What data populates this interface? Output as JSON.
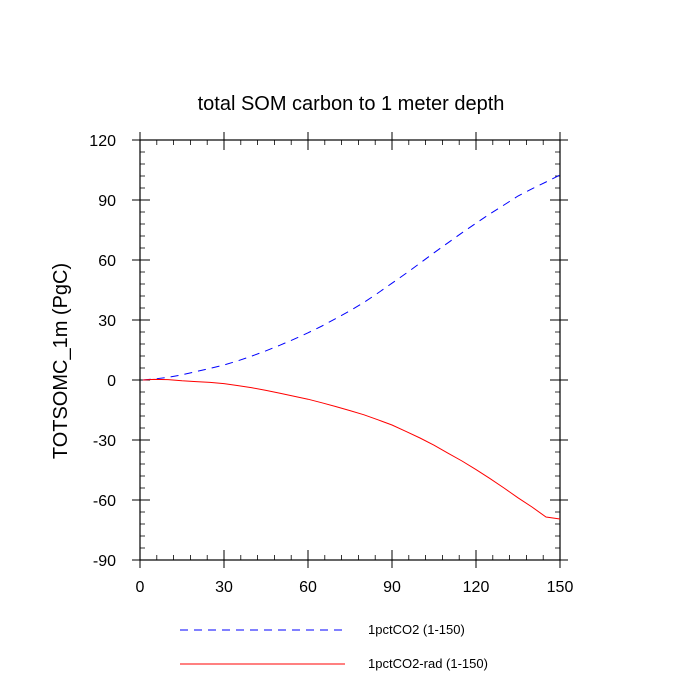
{
  "chart_data": {
    "type": "line",
    "title": "total SOM carbon to 1 meter depth",
    "xlabel": "",
    "ylabel": "TOTSOMC_1m  (PgC)",
    "xlim": [
      0,
      150
    ],
    "ylim": [
      -90,
      120
    ],
    "xticks": [
      0,
      30,
      60,
      90,
      120,
      150
    ],
    "yticks": [
      -90,
      -60,
      -30,
      0,
      30,
      60,
      90,
      120
    ],
    "grid": false,
    "legend_position": "bottom",
    "series": [
      {
        "name": "1pctCO2 (1-150)",
        "color": "#0000ff",
        "dash": "dashed",
        "x": [
          1,
          5,
          10,
          15,
          20,
          25,
          30,
          35,
          40,
          45,
          50,
          55,
          60,
          65,
          70,
          75,
          80,
          85,
          90,
          95,
          100,
          105,
          110,
          115,
          120,
          125,
          130,
          135,
          140,
          145,
          150
        ],
        "y": [
          0,
          0.5,
          1.3,
          2.6,
          4.2,
          5.8,
          7.5,
          9.6,
          12.0,
          14.6,
          17.4,
          20.4,
          23.6,
          27.0,
          30.8,
          34.6,
          38.8,
          43.5,
          48.4,
          53.3,
          58.4,
          63.6,
          68.6,
          73.6,
          78.4,
          83.1,
          87.5,
          92.0,
          95.6,
          99.0,
          102.5
        ]
      },
      {
        "name": "1pctCO2-rad (1-150)",
        "color": "#ff0000",
        "dash": "solid",
        "x": [
          1,
          5,
          10,
          15,
          20,
          25,
          30,
          35,
          40,
          45,
          50,
          55,
          60,
          65,
          70,
          75,
          80,
          85,
          90,
          95,
          100,
          105,
          110,
          115,
          120,
          125,
          130,
          135,
          140,
          145,
          150
        ],
        "y": [
          0,
          0.3,
          0.2,
          -0.4,
          -0.8,
          -1.2,
          -1.8,
          -2.8,
          -3.9,
          -5.2,
          -6.6,
          -8.1,
          -9.6,
          -11.4,
          -13.3,
          -15.3,
          -17.4,
          -19.9,
          -22.5,
          -25.7,
          -29.0,
          -32.6,
          -36.6,
          -40.5,
          -44.8,
          -49.3,
          -54.0,
          -58.9,
          -63.5,
          -68.5,
          -69.5
        ]
      }
    ]
  }
}
